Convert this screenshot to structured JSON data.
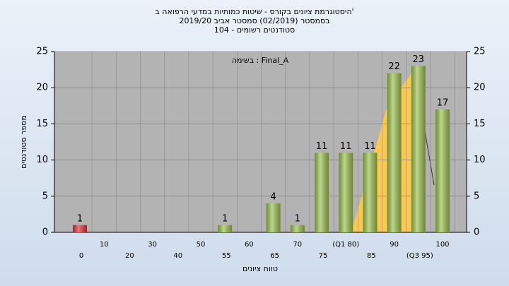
{
  "chart_data": {
    "type": "bar",
    "title": [
      "היסטוגרמת ציונים בקורס - שיטות כמותיות במדעי הרפואה ב'",
      "בסמסטר  (02/2019)  סמסטר אביב 2019/20",
      "סטודנטים רשומים - 104"
    ],
    "annotation": "בשימה : Final_A",
    "ylabel": "מספר סטודנטים",
    "xlabel": "טווח ציונים",
    "categories": [
      "0",
      "10",
      "20",
      "30",
      "40",
      "50",
      "55",
      "60",
      "65",
      "70",
      "75",
      "(Q1 80)",
      "85",
      "90",
      "(Q3 95)",
      "100"
    ],
    "values": [
      1,
      0,
      0,
      0,
      0,
      0,
      1,
      0,
      4,
      1,
      11,
      11,
      11,
      22,
      23,
      17
    ],
    "colors": [
      "#e0343a",
      "#9cc14e",
      "#9cc14e",
      "#9cc14e",
      "#9cc14e",
      "#9cc14e",
      "#9cc14e",
      "#9cc14e",
      "#9cc14e",
      "#9cc14e",
      "#9cc14e",
      "#9cc14e",
      "#9cc14e",
      "#9cc14e",
      "#9cc14e",
      "#9cc14e"
    ],
    "ylim": [
      0,
      25
    ],
    "yticks": [
      0,
      5,
      10,
      15,
      20,
      25
    ],
    "y2lim": [
      0,
      25
    ],
    "y2ticks": [
      0,
      5,
      10,
      15,
      20,
      25
    ],
    "grid": true
  }
}
